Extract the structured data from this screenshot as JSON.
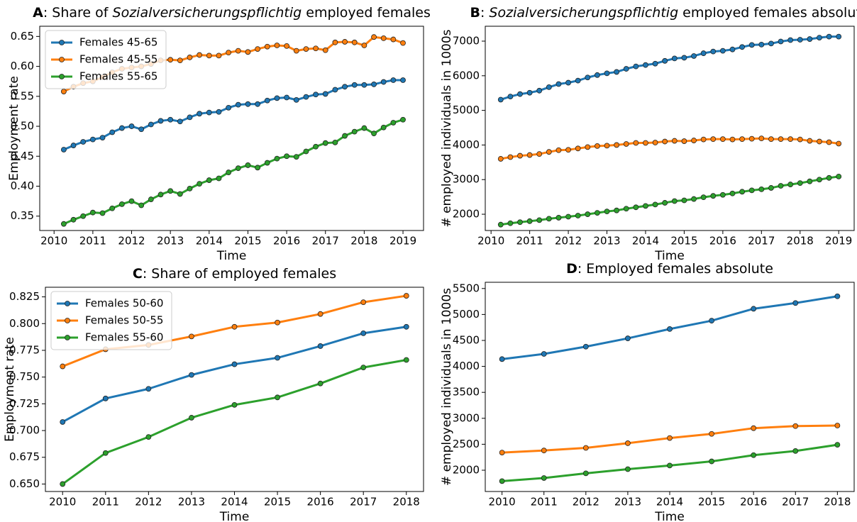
{
  "chart_data": [
    {
      "type": "line",
      "marker": "o",
      "title": [
        {
          "text": "A",
          "weight": "bold"
        },
        {
          "text": ": Share of "
        },
        {
          "text": "Sozialversicherungspflichtig",
          "style": "italic"
        },
        {
          "text": " employed females"
        }
      ],
      "xlabel": "Time",
      "ylabel": "Employment rate",
      "legend": "upper left",
      "xlim": [
        2009.63,
        2019.53
      ],
      "xticks": [
        2010,
        2011,
        2012,
        2013,
        2014,
        2015,
        2016,
        2017,
        2018,
        2019
      ],
      "ylim": [
        0.326,
        0.667
      ],
      "yticks": [
        0.35,
        {
          "value": 0.4,
          "label": "0.40"
        },
        0.45,
        {
          "value": 0.5,
          "label": "0.50"
        },
        0.55,
        {
          "value": 0.6,
          "label": "0.60"
        },
        0.65
      ],
      "x": [
        2010.25,
        2010.5,
        2010.75,
        2011,
        2011.25,
        2011.5,
        2011.75,
        2012,
        2012.25,
        2012.5,
        2012.75,
        2013,
        2013.25,
        2013.5,
        2013.75,
        2014,
        2014.25,
        2014.5,
        2014.75,
        2015,
        2015.25,
        2015.5,
        2015.75,
        2016,
        2016.25,
        2016.5,
        2016.75,
        2017,
        2017.25,
        2017.5,
        2017.75,
        2018,
        2018.25,
        2018.5,
        2018.75,
        2019
      ],
      "series": [
        {
          "name": "Females 45-65",
          "color": "#1f77b4",
          "values": [
            0.461,
            0.468,
            0.474,
            0.478,
            0.481,
            0.49,
            0.497,
            0.5,
            0.495,
            0.503,
            0.509,
            0.511,
            0.508,
            0.515,
            0.521,
            0.523,
            0.524,
            0.531,
            0.536,
            0.537,
            0.537,
            0.543,
            0.547,
            0.548,
            0.544,
            0.549,
            0.553,
            0.554,
            0.561,
            0.566,
            0.569,
            0.569,
            0.57,
            0.574,
            0.577,
            0.577
          ]
        },
        {
          "name": "Females 45-55",
          "color": "#ff7f0e",
          "values": [
            0.558,
            0.566,
            0.572,
            0.575,
            0.582,
            0.59,
            0.596,
            0.598,
            0.6,
            0.604,
            0.61,
            0.611,
            0.61,
            0.615,
            0.619,
            0.618,
            0.618,
            0.623,
            0.626,
            0.624,
            0.629,
            0.633,
            0.635,
            0.634,
            0.626,
            0.629,
            0.63,
            0.627,
            0.64,
            0.641,
            0.64,
            0.635,
            0.649,
            0.647,
            0.645,
            0.639
          ]
        },
        {
          "name": "Females 55-65",
          "color": "#2ca02c",
          "values": [
            0.337,
            0.344,
            0.35,
            0.356,
            0.355,
            0.363,
            0.37,
            0.375,
            0.368,
            0.378,
            0.386,
            0.392,
            0.387,
            0.396,
            0.404,
            0.41,
            0.413,
            0.423,
            0.43,
            0.435,
            0.431,
            0.439,
            0.446,
            0.45,
            0.449,
            0.458,
            0.466,
            0.472,
            0.473,
            0.484,
            0.491,
            0.497,
            0.488,
            0.498,
            0.506,
            0.511
          ]
        }
      ]
    },
    {
      "type": "line",
      "marker": "o",
      "title": [
        {
          "text": "B",
          "weight": "bold"
        },
        {
          "text": ": "
        },
        {
          "text": "Sozialversicherungspflichtig",
          "style": "italic"
        },
        {
          "text": " employed females absolute"
        }
      ],
      "xlabel": "Time",
      "ylabel": "# employed individuals in 1000s",
      "xlim": [
        2009.85,
        2019.4
      ],
      "xticks": [
        2010,
        2011,
        2012,
        2013,
        2014,
        2015,
        2016,
        2017,
        2018,
        2019
      ],
      "ylim": [
        1530,
        7430
      ],
      "yticks": [
        2000,
        3000,
        4000,
        5000,
        6000,
        7000
      ],
      "x": [
        2010.25,
        2010.5,
        2010.75,
        2011,
        2011.25,
        2011.5,
        2011.75,
        2012,
        2012.25,
        2012.5,
        2012.75,
        2013,
        2013.25,
        2013.5,
        2013.75,
        2014,
        2014.25,
        2014.5,
        2014.75,
        2015,
        2015.25,
        2015.5,
        2015.75,
        2016,
        2016.25,
        2016.5,
        2016.75,
        2017,
        2017.25,
        2017.5,
        2017.75,
        2018,
        2018.25,
        2018.5,
        2018.75,
        2019
      ],
      "series": [
        {
          "color": "#1f77b4",
          "values": [
            5310,
            5400,
            5470,
            5510,
            5570,
            5670,
            5760,
            5800,
            5860,
            5950,
            6020,
            6070,
            6110,
            6200,
            6270,
            6310,
            6350,
            6430,
            6500,
            6520,
            6570,
            6650,
            6700,
            6720,
            6760,
            6830,
            6890,
            6900,
            6930,
            6990,
            7030,
            7040,
            7060,
            7100,
            7130,
            7130
          ]
        },
        {
          "color": "#ff7f0e",
          "values": [
            3600,
            3650,
            3690,
            3710,
            3740,
            3800,
            3850,
            3860,
            3900,
            3940,
            3970,
            3980,
            4000,
            4030,
            4060,
            4060,
            4070,
            4100,
            4120,
            4110,
            4130,
            4160,
            4170,
            4170,
            4160,
            4170,
            4180,
            4190,
            4170,
            4170,
            4170,
            4160,
            4120,
            4100,
            4080,
            4040
          ]
        },
        {
          "color": "#2ca02c",
          "values": [
            1700,
            1740,
            1770,
            1800,
            1830,
            1870,
            1900,
            1930,
            1960,
            2000,
            2040,
            2080,
            2110,
            2160,
            2200,
            2240,
            2280,
            2330,
            2380,
            2400,
            2440,
            2490,
            2530,
            2560,
            2600,
            2650,
            2690,
            2720,
            2760,
            2820,
            2860,
            2900,
            2950,
            3000,
            3050,
            3090
          ]
        }
      ]
    },
    {
      "type": "line",
      "marker": "o",
      "title": [
        {
          "text": "C",
          "weight": "bold"
        },
        {
          "text": ": Share of employed females"
        }
      ],
      "xlabel": "Time",
      "ylabel": "Employment rate",
      "legend": "upper left",
      "xlim": [
        2009.6,
        2018.4
      ],
      "xticks": [
        2010,
        2011,
        2012,
        2013,
        2014,
        2015,
        2016,
        2017,
        2018
      ],
      "ylim": [
        0.643,
        0.834
      ],
      "yticks": [
        {
          "value": 0.65,
          "label": "0.650"
        },
        0.675,
        {
          "value": 0.7,
          "label": "0.700"
        },
        0.725,
        {
          "value": 0.75,
          "label": "0.750"
        },
        0.775,
        {
          "value": 0.8,
          "label": "0.800"
        },
        0.825
      ],
      "x": [
        2010,
        2011,
        2012,
        2013,
        2014,
        2015,
        2016,
        2017,
        2018
      ],
      "series": [
        {
          "name": "Females 50-60",
          "color": "#1f77b4",
          "values": [
            0.708,
            0.73,
            0.739,
            0.752,
            0.762,
            0.768,
            0.779,
            0.791,
            0.797
          ]
        },
        {
          "name": "Females 50-55",
          "color": "#ff7f0e",
          "values": [
            0.76,
            0.776,
            0.78,
            0.788,
            0.797,
            0.801,
            0.809,
            0.82,
            0.826
          ]
        },
        {
          "name": "Females 55-60",
          "color": "#2ca02c",
          "values": [
            0.65,
            0.679,
            0.694,
            0.712,
            0.724,
            0.731,
            0.744,
            0.759,
            0.766
          ]
        }
      ]
    },
    {
      "type": "line",
      "marker": "o",
      "title": [
        {
          "text": "D",
          "weight": "bold"
        },
        {
          "text": ": Employed females absolute"
        }
      ],
      "xlabel": "Time",
      "ylabel": "# employed individuals in 1000s",
      "xlim": [
        2009.6,
        2018.4
      ],
      "xticks": [
        2010,
        2011,
        2012,
        2013,
        2014,
        2015,
        2016,
        2017,
        2018
      ],
      "ylim": [
        1590,
        5620
      ],
      "yticks": [
        2000,
        2500,
        3000,
        3500,
        4000,
        4500,
        5000,
        5500
      ],
      "x": [
        2010,
        2011,
        2012,
        2013,
        2014,
        2015,
        2016,
        2017,
        2018
      ],
      "series": [
        {
          "color": "#1f77b4",
          "values": [
            4140,
            4240,
            4380,
            4540,
            4720,
            4880,
            5110,
            5220,
            5350
          ]
        },
        {
          "color": "#ff7f0e",
          "values": [
            2340,
            2380,
            2430,
            2520,
            2620,
            2700,
            2810,
            2850,
            2860
          ]
        },
        {
          "color": "#2ca02c",
          "values": [
            1790,
            1850,
            1940,
            2020,
            2090,
            2170,
            2290,
            2370,
            2490
          ]
        }
      ]
    }
  ]
}
